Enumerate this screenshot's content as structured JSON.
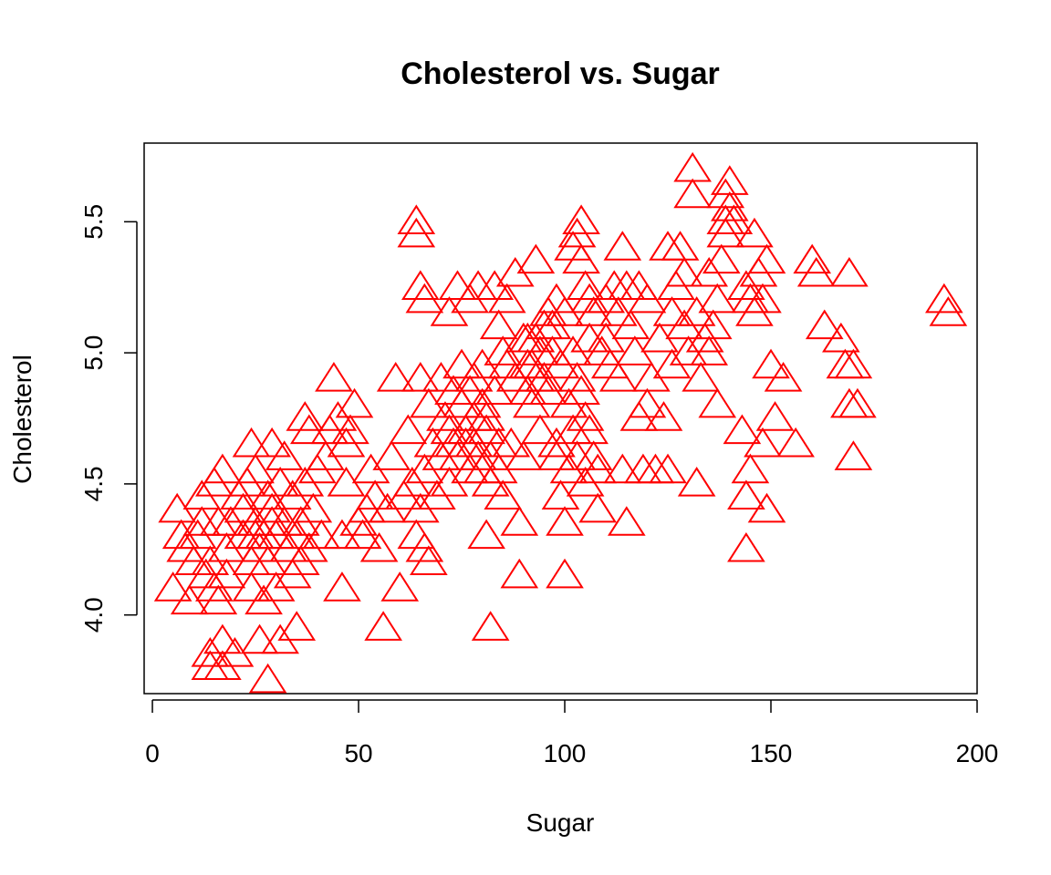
{
  "chart_data": {
    "type": "scatter",
    "title": "Cholesterol vs. Sugar",
    "xlabel": "Sugar",
    "ylabel": "Cholesterol",
    "xlim": [
      -2,
      200
    ],
    "ylim": [
      3.7,
      5.8
    ],
    "xticks": [
      0,
      50,
      100,
      150,
      200
    ],
    "yticks": [
      4.0,
      4.5,
      5.0,
      5.5
    ],
    "xtick_labels": [
      "0",
      "50",
      "100",
      "150",
      "200"
    ],
    "ytick_labels": [
      "4.0",
      "4.5",
      "5.0",
      "5.5"
    ],
    "grid": false,
    "marker": "open-triangle",
    "color": "#ff0000",
    "series": [
      {
        "points": [
          [
            6,
            4.4
          ],
          [
            7,
            4.3
          ],
          [
            5,
            4.1
          ],
          [
            8,
            4.25
          ],
          [
            9,
            4.05
          ],
          [
            10,
            4.2
          ],
          [
            11,
            4.3
          ],
          [
            12,
            4.35
          ],
          [
            12,
            4.45
          ],
          [
            13,
            4.15
          ],
          [
            14,
            4.2
          ],
          [
            14,
            3.85
          ],
          [
            14,
            3.8
          ],
          [
            15,
            4.5
          ],
          [
            15,
            4.1
          ],
          [
            16,
            4.05
          ],
          [
            16,
            4.35
          ],
          [
            17,
            4.55
          ],
          [
            17,
            3.9
          ],
          [
            17,
            3.8
          ],
          [
            18,
            4.25
          ],
          [
            18,
            4.15
          ],
          [
            19,
            4.35
          ],
          [
            20,
            3.85
          ],
          [
            21,
            4.45
          ],
          [
            22,
            4.3
          ],
          [
            22,
            4.4
          ],
          [
            23,
            4.5
          ],
          [
            24,
            4.65
          ],
          [
            24,
            4.1
          ],
          [
            24,
            4.2
          ],
          [
            25,
            4.3
          ],
          [
            25,
            4.35
          ],
          [
            25,
            4.55
          ],
          [
            26,
            3.9
          ],
          [
            26,
            4.25
          ],
          [
            27,
            4.3
          ],
          [
            27,
            4.05
          ],
          [
            28,
            3.75
          ],
          [
            28,
            4.2
          ],
          [
            28,
            4.45
          ],
          [
            29,
            4.35
          ],
          [
            29,
            4.65
          ],
          [
            29,
            4.4
          ],
          [
            30,
            4.1
          ],
          [
            30,
            4.3
          ],
          [
            31,
            4.5
          ],
          [
            31,
            3.9
          ],
          [
            32,
            4.6
          ],
          [
            32,
            4.35
          ],
          [
            33,
            4.25
          ],
          [
            34,
            4.15
          ],
          [
            34,
            4.45
          ],
          [
            35,
            3.95
          ],
          [
            35,
            4.3
          ],
          [
            36,
            4.35
          ],
          [
            36,
            4.2
          ],
          [
            37,
            4.75
          ],
          [
            37,
            4.5
          ],
          [
            38,
            4.7
          ],
          [
            38,
            4.25
          ],
          [
            39,
            4.4
          ],
          [
            40,
            4.55
          ],
          [
            41,
            4.3
          ],
          [
            42,
            4.6
          ],
          [
            43,
            4.7
          ],
          [
            44,
            4.9
          ],
          [
            45,
            4.75
          ],
          [
            46,
            4.1
          ],
          [
            46,
            4.3
          ],
          [
            47,
            4.65
          ],
          [
            47,
            4.5
          ],
          [
            48,
            4.7
          ],
          [
            49,
            4.8
          ],
          [
            50,
            4.35
          ],
          [
            51,
            4.3
          ],
          [
            52,
            4.4
          ],
          [
            53,
            4.55
          ],
          [
            54,
            4.45
          ],
          [
            55,
            4.25
          ],
          [
            56,
            3.95
          ],
          [
            57,
            4.4
          ],
          [
            58,
            4.6
          ],
          [
            59,
            4.9
          ],
          [
            60,
            4.1
          ],
          [
            61,
            4.45
          ],
          [
            62,
            4.7
          ],
          [
            63,
            4.5
          ],
          [
            64,
            4.3
          ],
          [
            64,
            5.45
          ],
          [
            64,
            5.5
          ],
          [
            65,
            4.9
          ],
          [
            65,
            4.4
          ],
          [
            65,
            5.25
          ],
          [
            66,
            4.55
          ],
          [
            66,
            5.2
          ],
          [
            66,
            4.25
          ],
          [
            67,
            4.8
          ],
          [
            67,
            4.2
          ],
          [
            68,
            4.65
          ],
          [
            69,
            4.45
          ],
          [
            70,
            4.9
          ],
          [
            70,
            4.6
          ],
          [
            71,
            4.75
          ],
          [
            72,
            4.5
          ],
          [
            72,
            4.7
          ],
          [
            72,
            5.15
          ],
          [
            73,
            4.65
          ],
          [
            73,
            4.85
          ],
          [
            74,
            4.6
          ],
          [
            74,
            5.25
          ],
          [
            75,
            4.8
          ],
          [
            75,
            4.95
          ],
          [
            76,
            4.7
          ],
          [
            76,
            4.65
          ],
          [
            77,
            4.85
          ],
          [
            77,
            4.55
          ],
          [
            77,
            5.2
          ],
          [
            78,
            4.9
          ],
          [
            78,
            4.75
          ],
          [
            78,
            4.65
          ],
          [
            79,
            4.6
          ],
          [
            79,
            5.25
          ],
          [
            80,
            4.95
          ],
          [
            80,
            4.8
          ],
          [
            80,
            4.55
          ],
          [
            81,
            4.75
          ],
          [
            81,
            4.7
          ],
          [
            81,
            4.3
          ],
          [
            82,
            4.6
          ],
          [
            82,
            4.5
          ],
          [
            82,
            3.95
          ],
          [
            83,
            4.85
          ],
          [
            83,
            5.25
          ],
          [
            84,
            4.65
          ],
          [
            84,
            4.55
          ],
          [
            84,
            5.1
          ],
          [
            85,
            4.45
          ],
          [
            85,
            5.0
          ],
          [
            86,
            4.95
          ],
          [
            86,
            5.2
          ],
          [
            87,
            4.65
          ],
          [
            88,
            4.9
          ],
          [
            88,
            5.3
          ],
          [
            89,
            4.15
          ],
          [
            89,
            4.35
          ],
          [
            90,
            4.6
          ],
          [
            90,
            5.05
          ],
          [
            91,
            5.05
          ],
          [
            91,
            4.85
          ],
          [
            91,
            4.95
          ],
          [
            92,
            4.95
          ],
          [
            92,
            4.8
          ],
          [
            93,
            4.9
          ],
          [
            93,
            5.05
          ],
          [
            93,
            5.35
          ],
          [
            94,
            4.7
          ],
          [
            94,
            5.0
          ],
          [
            95,
            4.9
          ],
          [
            95,
            5.1
          ],
          [
            96,
            4.85
          ],
          [
            96,
            5.15
          ],
          [
            97,
            5.0
          ],
          [
            97,
            5.1
          ],
          [
            98,
            4.65
          ],
          [
            98,
            5.2
          ],
          [
            98,
            4.6
          ],
          [
            99,
            4.45
          ],
          [
            99,
            4.95
          ],
          [
            100,
            4.35
          ],
          [
            100,
            5.15
          ],
          [
            100,
            4.15
          ],
          [
            101,
            4.55
          ],
          [
            101,
            4.8
          ],
          [
            102,
            4.7
          ],
          [
            102,
            5.0
          ],
          [
            102,
            5.4
          ],
          [
            103,
            4.9
          ],
          [
            103,
            5.45
          ],
          [
            103,
            4.6
          ],
          [
            104,
            5.35
          ],
          [
            104,
            5.5
          ],
          [
            104,
            4.85
          ],
          [
            105,
            5.25
          ],
          [
            105,
            4.5
          ],
          [
            105,
            4.75
          ],
          [
            106,
            5.05
          ],
          [
            106,
            4.7
          ],
          [
            106,
            5.2
          ],
          [
            107,
            4.6
          ],
          [
            107,
            5.15
          ],
          [
            108,
            4.55
          ],
          [
            108,
            4.4
          ],
          [
            109,
            5.0
          ],
          [
            110,
            5.05
          ],
          [
            110,
            5.2
          ],
          [
            111,
            4.95
          ],
          [
            112,
            5.25
          ],
          [
            113,
            4.9
          ],
          [
            113,
            5.15
          ],
          [
            114,
            5.4
          ],
          [
            114,
            4.55
          ],
          [
            115,
            5.25
          ],
          [
            115,
            4.35
          ],
          [
            116,
            5.1
          ],
          [
            117,
            5.0
          ],
          [
            118,
            4.75
          ],
          [
            118,
            5.25
          ],
          [
            119,
            4.55
          ],
          [
            120,
            4.8
          ],
          [
            120,
            5.2
          ],
          [
            121,
            4.9
          ],
          [
            122,
            4.55
          ],
          [
            123,
            5.05
          ],
          [
            124,
            4.75
          ],
          [
            125,
            5.4
          ],
          [
            125,
            4.55
          ],
          [
            126,
            5.15
          ],
          [
            126,
            4.95
          ],
          [
            127,
            5.25
          ],
          [
            128,
            5.4
          ],
          [
            129,
            5.3
          ],
          [
            129,
            5.1
          ],
          [
            130,
            5.0
          ],
          [
            131,
            5.7
          ],
          [
            131,
            5.6
          ],
          [
            132,
            5.15
          ],
          [
            132,
            4.5
          ],
          [
            133,
            4.9
          ],
          [
            134,
            5.05
          ],
          [
            135,
            5.0
          ],
          [
            135,
            5.3
          ],
          [
            136,
            5.1
          ],
          [
            137,
            4.8
          ],
          [
            137,
            5.2
          ],
          [
            138,
            5.35
          ],
          [
            139,
            5.45
          ],
          [
            139,
            5.5
          ],
          [
            139,
            5.6
          ],
          [
            140,
            5.55
          ],
          [
            140,
            5.65
          ],
          [
            141,
            5.5
          ],
          [
            143,
            4.7
          ],
          [
            144,
            4.45
          ],
          [
            144,
            4.25
          ],
          [
            144,
            5.25
          ],
          [
            145,
            5.2
          ],
          [
            145,
            4.55
          ],
          [
            146,
            5.45
          ],
          [
            146,
            5.15
          ],
          [
            147,
            5.3
          ],
          [
            148,
            5.2
          ],
          [
            148,
            4.65
          ],
          [
            149,
            4.4
          ],
          [
            149,
            5.35
          ],
          [
            150,
            4.95
          ],
          [
            151,
            4.75
          ],
          [
            153,
            4.9
          ],
          [
            156,
            4.65
          ],
          [
            160,
            5.35
          ],
          [
            161,
            5.3
          ],
          [
            163,
            5.1
          ],
          [
            167,
            5.05
          ],
          [
            168,
            4.95
          ],
          [
            169,
            4.8
          ],
          [
            169,
            5.3
          ],
          [
            170,
            4.95
          ],
          [
            170,
            4.6
          ],
          [
            171,
            4.8
          ],
          [
            192,
            5.2
          ],
          [
            193,
            5.15
          ]
        ]
      }
    ]
  }
}
